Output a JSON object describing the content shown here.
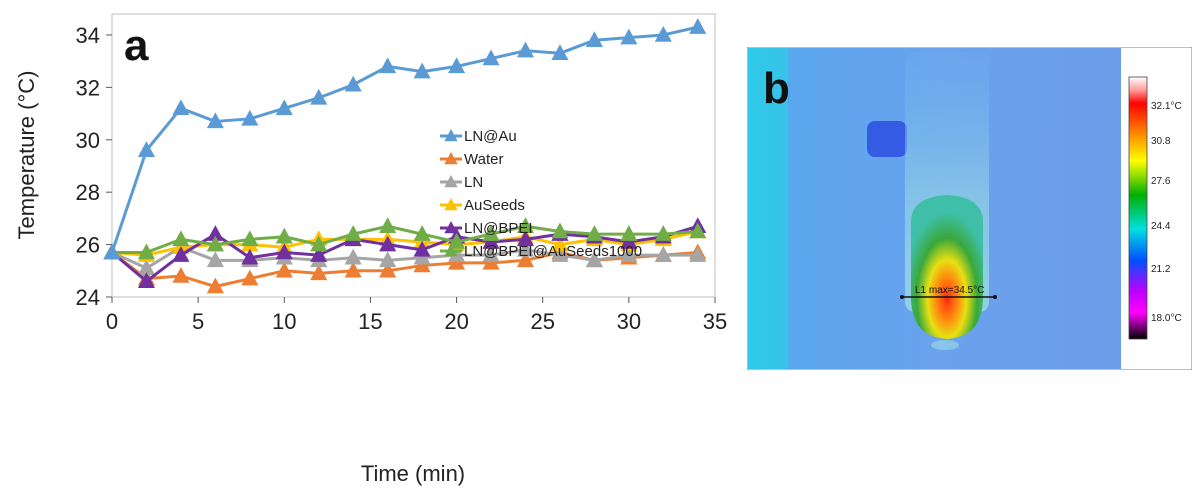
{
  "chart_data": {
    "type": "line",
    "panel_label": "a",
    "xlabel": "Time (min)",
    "ylabel": "Temperature (°C)",
    "xlim": [
      0,
      35
    ],
    "ylim": [
      24,
      34.8
    ],
    "xticks": [
      0,
      5,
      10,
      15,
      20,
      25,
      30,
      35
    ],
    "yticks": [
      24,
      26,
      28,
      30,
      32,
      34
    ],
    "grid": false,
    "legend_position": "center-right",
    "x": [
      0,
      2,
      4,
      6,
      8,
      10,
      12,
      14,
      16,
      18,
      20,
      22,
      24,
      26,
      28,
      30,
      32,
      34
    ],
    "series": [
      {
        "name": "LN@Au",
        "color": "#5b9bd5",
        "values": [
          25.7,
          29.6,
          31.2,
          30.7,
          30.8,
          31.2,
          31.6,
          32.1,
          32.8,
          32.6,
          32.8,
          33.1,
          33.4,
          33.3,
          33.8,
          33.9,
          34.0,
          34.3
        ]
      },
      {
        "name": "Water",
        "color": "#ed7d31",
        "values": [
          25.7,
          24.7,
          24.8,
          24.4,
          24.7,
          25.0,
          24.9,
          25.0,
          25.0,
          25.2,
          25.3,
          25.3,
          25.4,
          25.7,
          25.4,
          25.5,
          25.6,
          25.7
        ]
      },
      {
        "name": "LN",
        "color": "#a5a5a5",
        "values": [
          25.7,
          25.1,
          25.9,
          25.4,
          25.4,
          25.5,
          25.4,
          25.5,
          25.4,
          25.5,
          25.6,
          25.6,
          25.8,
          25.6,
          25.4,
          25.6,
          25.6,
          25.6
        ]
      },
      {
        "name": "AuSeeds",
        "color": "#ffc000",
        "values": [
          25.7,
          25.6,
          25.9,
          26.0,
          26.0,
          25.9,
          26.2,
          26.2,
          26.2,
          26.1,
          26.0,
          26.1,
          26.3,
          26.0,
          26.2,
          26.0,
          26.2,
          26.5
        ]
      },
      {
        "name": "LN@BPEI",
        "color": "#7030a0",
        "values": [
          25.7,
          24.6,
          25.6,
          26.4,
          25.5,
          25.7,
          25.6,
          26.2,
          26.0,
          25.8,
          26.3,
          26.1,
          26.2,
          26.4,
          26.3,
          26.1,
          26.3,
          26.7
        ]
      },
      {
        "name": "LN@BPEI@AuSeeds1000",
        "color": "#70ad47",
        "values": [
          25.7,
          25.7,
          26.2,
          26.0,
          26.2,
          26.3,
          26.0,
          26.4,
          26.7,
          26.4,
          26.1,
          26.4,
          26.7,
          26.5,
          26.4,
          26.4,
          26.4,
          26.5
        ]
      }
    ]
  },
  "thermal_image": {
    "panel_label": "b",
    "colorbar_labels": [
      "32.1°C",
      "30.8",
      "27.6",
      "24.4",
      "21.2",
      "18.0°C"
    ],
    "annotation": "L1 max=34.5°C"
  }
}
